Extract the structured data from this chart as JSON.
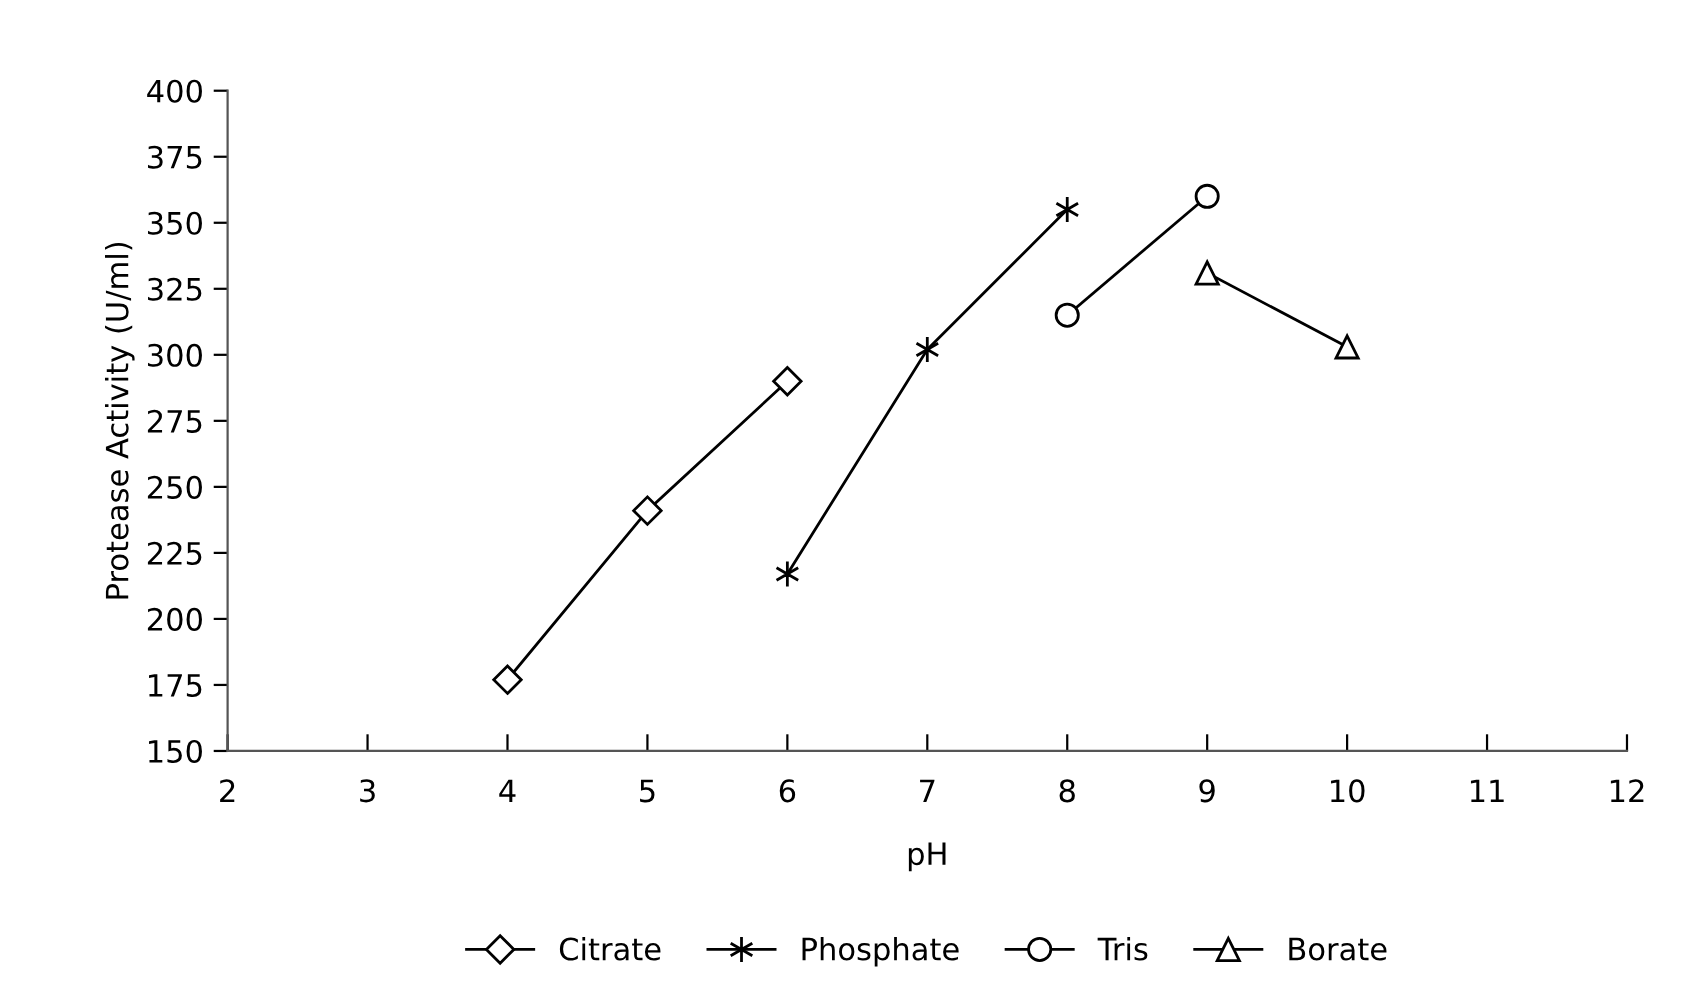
{
  "chart_data": {
    "type": "line",
    "xlabel": "pH",
    "ylabel": "Protease Activity (U/ml)",
    "xlim": [
      2,
      12
    ],
    "xticks": [
      2,
      3,
      4,
      5,
      6,
      7,
      8,
      9,
      10,
      11,
      12
    ],
    "ylim": [
      150,
      400
    ],
    "yticks": [
      150,
      175,
      200,
      225,
      250,
      275,
      300,
      325,
      350,
      375,
      400
    ],
    "grid": false,
    "legend": "bottom",
    "line_style": "solid",
    "series": [
      {
        "name": "Citrate",
        "color": "#000000",
        "marker": "diamond",
        "x": [
          4,
          5,
          6
        ],
        "values": [
          177,
          241,
          290
        ]
      },
      {
        "name": "Phosphate",
        "color": "#000000",
        "marker": "cross",
        "x": [
          6,
          7,
          8
        ],
        "values": [
          217,
          302,
          355
        ]
      },
      {
        "name": "Tris",
        "color": "#000000",
        "marker": "circle",
        "x": [
          8,
          9
        ],
        "values": [
          315,
          360
        ]
      },
      {
        "name": "Borate",
        "color": "#000000",
        "marker": "triangle",
        "x": [
          9,
          10
        ],
        "values": [
          331,
          303
        ]
      }
    ]
  }
}
